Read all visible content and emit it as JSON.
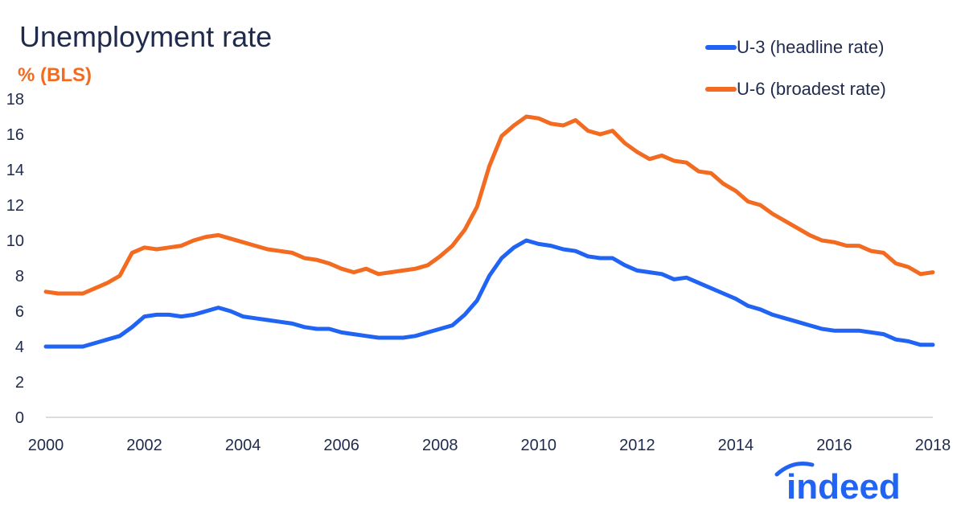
{
  "chart_data": {
    "type": "line",
    "title": "Unemployment rate",
    "ylabel": "% (BLS)",
    "xlabel": "",
    "xlim": [
      2000,
      2018
    ],
    "ylim": [
      0,
      18
    ],
    "x_ticks": [
      "2000",
      "2002",
      "2004",
      "2006",
      "2008",
      "2010",
      "2012",
      "2014",
      "2016",
      "2018"
    ],
    "y_ticks": [
      "0",
      "2",
      "4",
      "6",
      "8",
      "10",
      "12",
      "14",
      "16",
      "18"
    ],
    "grid": false,
    "legend_position": "top-right",
    "series": [
      {
        "name": "U-3 (headline rate)",
        "color": "#2164f3",
        "points": [
          [
            2000.0,
            4.0
          ],
          [
            2000.25,
            4.0
          ],
          [
            2000.5,
            4.0
          ],
          [
            2000.75,
            4.0
          ],
          [
            2001.0,
            4.2
          ],
          [
            2001.25,
            4.4
          ],
          [
            2001.5,
            4.6
          ],
          [
            2001.75,
            5.1
          ],
          [
            2002.0,
            5.7
          ],
          [
            2002.25,
            5.8
          ],
          [
            2002.5,
            5.8
          ],
          [
            2002.75,
            5.7
          ],
          [
            2003.0,
            5.8
          ],
          [
            2003.25,
            6.0
          ],
          [
            2003.5,
            6.2
          ],
          [
            2003.75,
            6.0
          ],
          [
            2004.0,
            5.7
          ],
          [
            2004.25,
            5.6
          ],
          [
            2004.5,
            5.5
          ],
          [
            2004.75,
            5.4
          ],
          [
            2005.0,
            5.3
          ],
          [
            2005.25,
            5.1
          ],
          [
            2005.5,
            5.0
          ],
          [
            2005.75,
            5.0
          ],
          [
            2006.0,
            4.8
          ],
          [
            2006.25,
            4.7
          ],
          [
            2006.5,
            4.6
          ],
          [
            2006.75,
            4.5
          ],
          [
            2007.0,
            4.5
          ],
          [
            2007.25,
            4.5
          ],
          [
            2007.5,
            4.6
          ],
          [
            2007.75,
            4.8
          ],
          [
            2008.0,
            5.0
          ],
          [
            2008.25,
            5.2
          ],
          [
            2008.5,
            5.8
          ],
          [
            2008.75,
            6.6
          ],
          [
            2009.0,
            8.0
          ],
          [
            2009.25,
            9.0
          ],
          [
            2009.5,
            9.6
          ],
          [
            2009.75,
            10.0
          ],
          [
            2010.0,
            9.8
          ],
          [
            2010.25,
            9.7
          ],
          [
            2010.5,
            9.5
          ],
          [
            2010.75,
            9.4
          ],
          [
            2011.0,
            9.1
          ],
          [
            2011.25,
            9.0
          ],
          [
            2011.5,
            9.0
          ],
          [
            2011.75,
            8.6
          ],
          [
            2012.0,
            8.3
          ],
          [
            2012.25,
            8.2
          ],
          [
            2012.5,
            8.1
          ],
          [
            2012.75,
            7.8
          ],
          [
            2013.0,
            7.9
          ],
          [
            2013.25,
            7.6
          ],
          [
            2013.5,
            7.3
          ],
          [
            2013.75,
            7.0
          ],
          [
            2014.0,
            6.7
          ],
          [
            2014.25,
            6.3
          ],
          [
            2014.5,
            6.1
          ],
          [
            2014.75,
            5.8
          ],
          [
            2015.0,
            5.6
          ],
          [
            2015.25,
            5.4
          ],
          [
            2015.5,
            5.2
          ],
          [
            2015.75,
            5.0
          ],
          [
            2016.0,
            4.9
          ],
          [
            2016.25,
            4.9
          ],
          [
            2016.5,
            4.9
          ],
          [
            2016.75,
            4.8
          ],
          [
            2017.0,
            4.7
          ],
          [
            2017.25,
            4.4
          ],
          [
            2017.5,
            4.3
          ],
          [
            2017.75,
            4.1
          ],
          [
            2018.0,
            4.1
          ]
        ]
      },
      {
        "name": "U-6 (broadest rate)",
        "color": "#f26b21",
        "points": [
          [
            2000.0,
            7.1
          ],
          [
            2000.25,
            7.0
          ],
          [
            2000.5,
            7.0
          ],
          [
            2000.75,
            7.0
          ],
          [
            2001.0,
            7.3
          ],
          [
            2001.25,
            7.6
          ],
          [
            2001.5,
            8.0
          ],
          [
            2001.75,
            9.3
          ],
          [
            2002.0,
            9.6
          ],
          [
            2002.25,
            9.5
          ],
          [
            2002.5,
            9.6
          ],
          [
            2002.75,
            9.7
          ],
          [
            2003.0,
            10.0
          ],
          [
            2003.25,
            10.2
          ],
          [
            2003.5,
            10.3
          ],
          [
            2003.75,
            10.1
          ],
          [
            2004.0,
            9.9
          ],
          [
            2004.25,
            9.7
          ],
          [
            2004.5,
            9.5
          ],
          [
            2004.75,
            9.4
          ],
          [
            2005.0,
            9.3
          ],
          [
            2005.25,
            9.0
          ],
          [
            2005.5,
            8.9
          ],
          [
            2005.75,
            8.7
          ],
          [
            2006.0,
            8.4
          ],
          [
            2006.25,
            8.2
          ],
          [
            2006.5,
            8.4
          ],
          [
            2006.75,
            8.1
          ],
          [
            2007.0,
            8.2
          ],
          [
            2007.25,
            8.3
          ],
          [
            2007.5,
            8.4
          ],
          [
            2007.75,
            8.6
          ],
          [
            2008.0,
            9.1
          ],
          [
            2008.25,
            9.7
          ],
          [
            2008.5,
            10.6
          ],
          [
            2008.75,
            11.9
          ],
          [
            2009.0,
            14.2
          ],
          [
            2009.25,
            15.9
          ],
          [
            2009.5,
            16.5
          ],
          [
            2009.75,
            17.0
          ],
          [
            2010.0,
            16.9
          ],
          [
            2010.25,
            16.6
          ],
          [
            2010.5,
            16.5
          ],
          [
            2010.75,
            16.8
          ],
          [
            2011.0,
            16.2
          ],
          [
            2011.25,
            16.0
          ],
          [
            2011.5,
            16.2
          ],
          [
            2011.75,
            15.5
          ],
          [
            2012.0,
            15.0
          ],
          [
            2012.25,
            14.6
          ],
          [
            2012.5,
            14.8
          ],
          [
            2012.75,
            14.5
          ],
          [
            2013.0,
            14.4
          ],
          [
            2013.25,
            13.9
          ],
          [
            2013.5,
            13.8
          ],
          [
            2013.75,
            13.2
          ],
          [
            2014.0,
            12.8
          ],
          [
            2014.25,
            12.2
          ],
          [
            2014.5,
            12.0
          ],
          [
            2014.75,
            11.5
          ],
          [
            2015.0,
            11.1
          ],
          [
            2015.25,
            10.7
          ],
          [
            2015.5,
            10.3
          ],
          [
            2015.75,
            10.0
          ],
          [
            2016.0,
            9.9
          ],
          [
            2016.25,
            9.7
          ],
          [
            2016.5,
            9.7
          ],
          [
            2016.75,
            9.4
          ],
          [
            2017.0,
            9.3
          ],
          [
            2017.25,
            8.7
          ],
          [
            2017.5,
            8.5
          ],
          [
            2017.75,
            8.1
          ],
          [
            2018.0,
            8.2
          ]
        ]
      }
    ]
  },
  "brand": {
    "logo_text": "indeed",
    "color": "#2164f3"
  }
}
